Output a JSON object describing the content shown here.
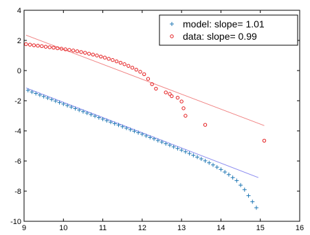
{
  "chart_data": {
    "type": "scatter",
    "title": "",
    "xlabel": "",
    "ylabel": "",
    "xlim": [
      9,
      16
    ],
    "ylim": [
      -10,
      4
    ],
    "xticks": [
      9,
      10,
      11,
      12,
      13,
      14,
      15,
      16
    ],
    "yticks": [
      -10,
      -8,
      -6,
      -4,
      -2,
      0,
      2,
      4
    ],
    "x_tick_labels": [
      "9",
      "10",
      "11",
      "12",
      "13",
      "14",
      "15",
      "16"
    ],
    "y_tick_labels": [
      "-10",
      "-8",
      "-6",
      "-4",
      "-2",
      "0",
      "2",
      "4"
    ],
    "grid": false,
    "legend_position": "top-right",
    "series": [
      {
        "name": "model: slope= 1.01",
        "marker": "plus",
        "color": "#1f77b4",
        "x": [
          9.1,
          9.2,
          9.3,
          9.4,
          9.5,
          9.6,
          9.7,
          9.8,
          9.9,
          10.0,
          10.1,
          10.2,
          10.3,
          10.4,
          10.5,
          10.6,
          10.7,
          10.8,
          10.9,
          11.0,
          11.1,
          11.2,
          11.3,
          11.4,
          11.5,
          11.6,
          11.7,
          11.8,
          11.9,
          12.0,
          12.1,
          12.2,
          12.3,
          12.4,
          12.5,
          12.6,
          12.7,
          12.8,
          12.9,
          13.0,
          13.1,
          13.2,
          13.3,
          13.4,
          13.5,
          13.6,
          13.7,
          13.8,
          13.9,
          14.0,
          14.1,
          14.2,
          14.3,
          14.4,
          14.5,
          14.6,
          14.7,
          14.8,
          14.9
        ],
        "y": [
          -1.31,
          -1.42,
          -1.52,
          -1.62,
          -1.72,
          -1.82,
          -1.92,
          -2.02,
          -2.12,
          -2.22,
          -2.32,
          -2.42,
          -2.52,
          -2.62,
          -2.72,
          -2.82,
          -2.92,
          -3.02,
          -3.12,
          -3.22,
          -3.32,
          -3.42,
          -3.52,
          -3.61,
          -3.72,
          -3.82,
          -3.92,
          -4.02,
          -4.12,
          -4.22,
          -4.33,
          -4.43,
          -4.53,
          -4.64,
          -4.74,
          -4.85,
          -4.95,
          -5.06,
          -5.17,
          -5.28,
          -5.39,
          -5.5,
          -5.62,
          -5.74,
          -5.86,
          -5.99,
          -6.12,
          -6.26,
          -6.41,
          -6.56,
          -6.73,
          -6.9,
          -7.1,
          -7.3,
          -7.6,
          -7.9,
          -8.3,
          -8.7,
          -9.1
        ]
      },
      {
        "name": "data: slope= 0.99",
        "marker": "circle",
        "color": "#e41a1c",
        "x": [
          9.05,
          9.15,
          9.25,
          9.35,
          9.45,
          9.55,
          9.65,
          9.75,
          9.85,
          9.95,
          10.05,
          10.15,
          10.25,
          10.35,
          10.45,
          10.55,
          10.65,
          10.75,
          10.85,
          10.95,
          11.05,
          11.15,
          11.25,
          11.35,
          11.45,
          11.55,
          11.65,
          11.75,
          11.85,
          11.95,
          12.05,
          12.15,
          12.25,
          12.35,
          12.6,
          12.7,
          12.75,
          12.9,
          13.0,
          13.05,
          13.1,
          13.6,
          15.1
        ],
        "y": [
          1.75,
          1.72,
          1.68,
          1.65,
          1.62,
          1.58,
          1.55,
          1.52,
          1.48,
          1.45,
          1.41,
          1.37,
          1.33,
          1.28,
          1.23,
          1.18,
          1.12,
          1.06,
          1.0,
          0.93,
          0.86,
          0.78,
          0.7,
          0.61,
          0.52,
          0.42,
          0.31,
          0.19,
          0.06,
          -0.08,
          -0.24,
          -0.55,
          -0.9,
          -1.2,
          -1.45,
          -1.55,
          -1.7,
          -1.8,
          -2.05,
          -2.5,
          -3.0,
          -3.6,
          -4.65
        ]
      }
    ],
    "fit_lines": [
      {
        "series": "model: slope= 1.01",
        "color": "#8a8af0",
        "x": [
          9.05,
          14.95
        ],
        "y": [
          -1.15,
          -7.1
        ]
      },
      {
        "series": "data: slope= 0.99",
        "color": "#f08080",
        "x": [
          9.05,
          15.1
        ],
        "y": [
          2.35,
          -3.65
        ]
      }
    ]
  }
}
